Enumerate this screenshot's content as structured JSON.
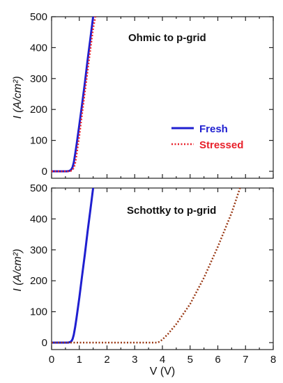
{
  "chart_data": [
    {
      "type": "line",
      "id": "top",
      "annotation": "Ohmic to p-grid",
      "ylabel": "I (A/cm²)",
      "ylim": [
        0,
        500
      ],
      "xlim": [
        0,
        8
      ],
      "yticks": [
        0,
        100,
        200,
        300,
        400,
        500
      ],
      "legend_position": "right-middle",
      "series": [
        {
          "name": "Fresh",
          "color": "#1f1fd0",
          "style": "solid",
          "x": [
            0,
            0.55,
            0.62,
            0.68,
            0.72,
            0.76,
            0.8,
            0.85,
            0.9,
            1.0,
            1.1,
            1.2,
            1.3,
            1.4,
            1.5
          ],
          "y": [
            0,
            0,
            1,
            3,
            7,
            14,
            28,
            55,
            85,
            150,
            215,
            285,
            360,
            430,
            500
          ]
        },
        {
          "name": "Stressed",
          "color": "#e8202a",
          "style": "dotted",
          "x": [
            0,
            0.6,
            0.68,
            0.74,
            0.78,
            0.82,
            0.86,
            0.9,
            1.0,
            1.1,
            1.2,
            1.3,
            1.4,
            1.5,
            1.58
          ],
          "y": [
            0,
            0,
            1,
            3,
            8,
            16,
            30,
            52,
            115,
            185,
            255,
            325,
            395,
            462,
            500
          ]
        }
      ]
    },
    {
      "type": "line",
      "id": "bottom",
      "annotation": "Schottky to p-grid",
      "ylabel": "I (A/cm²)",
      "xlabel": "V (V)",
      "ylim": [
        0,
        500
      ],
      "xlim": [
        0,
        8
      ],
      "yticks": [
        0,
        100,
        200,
        300,
        400,
        500
      ],
      "xticks": [
        0,
        1,
        2,
        3,
        4,
        5,
        6,
        7,
        8
      ],
      "series": [
        {
          "name": "Fresh",
          "color": "#1f1fd0",
          "style": "solid",
          "x": [
            0,
            0.6,
            0.68,
            0.72,
            0.76,
            0.8,
            0.85,
            0.9,
            1.0,
            1.1,
            1.2,
            1.3,
            1.4,
            1.5
          ],
          "y": [
            0,
            0,
            2,
            5,
            12,
            25,
            50,
            80,
            145,
            215,
            285,
            360,
            430,
            500
          ]
        },
        {
          "name": "Stressed",
          "color": "#9a3a16",
          "style": "dotted",
          "x": [
            0,
            3.8,
            3.9,
            4.0,
            4.2,
            4.5,
            5.0,
            5.5,
            6.0,
            6.5,
            6.8
          ],
          "y": [
            0,
            0,
            3,
            10,
            28,
            60,
            125,
            210,
            310,
            420,
            500
          ]
        }
      ]
    }
  ]
}
